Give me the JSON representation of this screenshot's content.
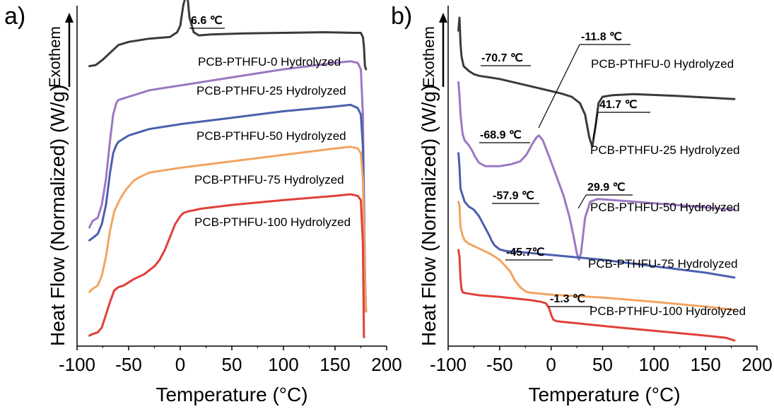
{
  "colors": {
    "PCB-PTHFU-0 Hydrolyzed": "#3a3a3a",
    "PCB-PTHFU-25 Hydrolyzed": "#9b78c2",
    "PCB-PTHFU-50 Hydrolyzed": "#4a5fad",
    "PCB-PTHFU-75 Hydrolyzed": "#f2a562",
    "PCB-PTHFU-100 Hydrolyzed": "#e0403a"
  },
  "chart_data": [
    {
      "type": "line",
      "panel": "a)",
      "xlabel": "Temperature (°C)",
      "ylabel": "Heat Flow (Normalized) (W/g)",
      "exotherm_label": "Exothem",
      "xlim": [
        -100,
        200
      ],
      "xticks": [
        -100,
        -50,
        0,
        50,
        100,
        150,
        200
      ],
      "ylim": [
        0,
        100
      ],
      "y_ticks_shown": false,
      "grid": false,
      "legend": "none",
      "series": [
        {
          "name": "PCB-PTHFU-0 Hydrolyzed",
          "x": [
            -88,
            -82,
            -75,
            -65,
            -60,
            -50,
            -30,
            -10,
            -3,
            0,
            3,
            6.6,
            9,
            13,
            18,
            30,
            60,
            100,
            140,
            170,
            175,
            177,
            178,
            179,
            180
          ],
          "y": [
            85,
            85.3,
            87,
            90,
            91.5,
            92.5,
            93.5,
            94,
            95.5,
            97.5,
            104,
            108,
            100,
            95.5,
            94.5,
            94.8,
            95.1,
            95.3,
            95.5,
            95.3,
            95.3,
            94,
            91,
            85,
            84
          ]
        },
        {
          "name": "PCB-PTHFU-25 Hydrolyzed",
          "x": [
            -88,
            -85,
            -80,
            -76,
            -72,
            -68,
            -65,
            -62,
            -60,
            -55,
            -50,
            -40,
            -30,
            -20,
            0,
            50,
            100,
            150,
            165,
            172,
            175,
            177,
            178,
            179,
            180
          ],
          "y": [
            35,
            37,
            38,
            42,
            50,
            62,
            70,
            73.5,
            74.5,
            75,
            75.5,
            76.5,
            77.5,
            78,
            79,
            81.5,
            84,
            86,
            86.5,
            86,
            84,
            70,
            45,
            20,
            9
          ]
        },
        {
          "name": "PCB-PTHFU-50 Hydrolyzed",
          "x": [
            -88,
            -84,
            -80,
            -76,
            -72,
            -68,
            -65,
            -62,
            -60,
            -55,
            -50,
            -40,
            -30,
            -20,
            0,
            50,
            100,
            150,
            165,
            172,
            175,
            177,
            178,
            179,
            180
          ],
          "y": [
            31,
            32,
            33,
            36,
            42,
            52,
            58,
            60.5,
            61.5,
            62.5,
            63.5,
            64.5,
            65.5,
            66,
            67,
            69,
            71,
            72.5,
            73,
            72,
            70,
            60,
            40,
            20,
            9
          ]
        },
        {
          "name": "PCB-PTHFU-75 Hydrolyzed",
          "x": [
            -88,
            -85,
            -80,
            -76,
            -72,
            -68,
            -64,
            -61,
            -58,
            -52,
            -45,
            -40,
            -30,
            -10,
            0,
            50,
            100,
            150,
            165,
            172,
            175,
            177,
            178,
            179,
            180
          ],
          "y": [
            15,
            16,
            17,
            20,
            26,
            34,
            40,
            42,
            44,
            47,
            49.5,
            50.5,
            52,
            53,
            53.5,
            55.5,
            57.5,
            59.5,
            60,
            59.5,
            58,
            50,
            35,
            18,
            9
          ]
        },
        {
          "name": "PCB-PTHFU-100 Hydrolyzed",
          "x": [
            -88,
            -85,
            -80,
            -76,
            -72,
            -68,
            -64,
            -60,
            -55,
            -45,
            -35,
            -25,
            -20,
            -15,
            -10,
            -5,
            0,
            3,
            8,
            20,
            50,
            100,
            150,
            165,
            172,
            175,
            177,
            178
          ],
          "y": [
            1.5,
            2,
            2.5,
            4,
            8,
            12,
            15.5,
            16.5,
            17,
            19,
            20.5,
            23,
            25,
            28,
            32,
            36,
            38.5,
            39.5,
            40,
            40.8,
            42,
            43.5,
            44.8,
            45.3,
            44.8,
            43.5,
            30,
            1
          ]
        }
      ],
      "label_texts": [
        "PCB-PTHFU-0 Hydrolyzed",
        "PCB-PTHFU-25 Hydrolyzed",
        "PCB-PTHFU-50 Hydrolyzed",
        "PCB-PTHFU-75 Hydrolyzed",
        "PCB-PTHFU-100 Hydrolyzed"
      ],
      "annotations": [
        {
          "text": "6.6 ℃",
          "x": 6.6
        }
      ]
    },
    {
      "type": "line",
      "panel": "b)",
      "xlabel": "Temperature (°C)",
      "ylabel": "Heat Flow (Normalized) (W/g)",
      "exotherm_label": "Exothem",
      "xlim": [
        -100,
        200
      ],
      "xticks": [
        -100,
        -50,
        0,
        50,
        100,
        150,
        200
      ],
      "ylim": [
        0,
        100
      ],
      "y_ticks_shown": false,
      "grid": false,
      "legend": "none",
      "series": [
        {
          "name": "PCB-PTHFU-0 Hydrolyzed",
          "x": [
            -90,
            -89,
            -88,
            -87,
            -85,
            -80,
            -75,
            -70,
            -60,
            -50,
            -30,
            -10,
            10,
            20,
            28,
            33,
            37,
            40,
            43,
            46,
            50,
            60,
            80,
            120,
            178
          ],
          "y": [
            96,
            100,
            92,
            88,
            85,
            83.5,
            82.5,
            82,
            81.5,
            81,
            79.5,
            78,
            76.5,
            75.5,
            73.5,
            70,
            63,
            60,
            66,
            73.5,
            75.5,
            76,
            76.3,
            75.8,
            74.8
          ]
        },
        {
          "name": "PCB-PTHFU-25 Hydrolyzed",
          "x": [
            -90,
            -89,
            -88,
            -86,
            -84,
            -80,
            -77,
            -74,
            -70,
            -64,
            -60,
            -50,
            -40,
            -30,
            -24,
            -18,
            -14,
            -11.8,
            -8,
            -2,
            5,
            12,
            18,
            22,
            25,
            27,
            29,
            33,
            38,
            45,
            60,
            100,
            140,
            178
          ],
          "y": [
            80,
            76,
            70,
            64,
            62,
            60.5,
            59,
            57,
            55,
            54,
            54,
            54,
            54.5,
            55.5,
            57.5,
            61,
            63,
            63.5,
            62,
            57,
            51,
            45,
            38,
            32,
            27,
            25,
            27,
            38,
            43,
            43.8,
            43.5,
            42.5,
            41.5,
            40.5
          ]
        },
        {
          "name": "PCB-PTHFU-50 Hydrolyzed",
          "x": [
            -90,
            -89,
            -88,
            -86,
            -84,
            -80,
            -75,
            -70,
            -65,
            -60,
            -57.9,
            -55,
            -50,
            -45,
            -40,
            -30,
            0,
            50,
            100,
            150,
            178
          ],
          "y": [
            58,
            54,
            47,
            45,
            43,
            41.5,
            40.5,
            38.5,
            35.5,
            32.5,
            31,
            29.5,
            28.2,
            27.8,
            27.6,
            27.4,
            26.5,
            25,
            23,
            21,
            19.5
          ]
        },
        {
          "name": "PCB-PTHFU-75 Hydrolyzed",
          "x": [
            -90,
            -89,
            -88,
            -86,
            -84,
            -80,
            -70,
            -60,
            -50,
            -40,
            -35,
            -30,
            -25,
            -20,
            -10,
            0,
            50,
            100,
            150,
            178
          ],
          "y": [
            43,
            42,
            35,
            32.5,
            31,
            30,
            28.5,
            27,
            25,
            21.5,
            18.5,
            16.5,
            15.2,
            14.8,
            14.5,
            14.2,
            13.3,
            12,
            10.5,
            9.5
          ]
        },
        {
          "name": "PCB-PTHFU-100 Hydrolyzed",
          "x": [
            -90,
            -89,
            -88,
            -87,
            -86,
            -85,
            -80,
            -70,
            -50,
            -20,
            -10,
            -5,
            -2,
            0,
            2,
            5,
            10,
            20,
            50,
            100,
            150,
            170,
            175,
            178
          ],
          "y": [
            28,
            26,
            19,
            16,
            15,
            14.8,
            14.5,
            14,
            13.5,
            12.5,
            12,
            11.5,
            10,
            8,
            6.5,
            6,
            5.8,
            5.5,
            4.5,
            3,
            1.5,
            0.8,
            0.3,
            0
          ]
        }
      ],
      "label_texts": [
        "PCB-PTHFU-0 Hydrolyzed",
        "PCB-PTHFU-25 Hydrolyzed",
        "PCB-PTHFU-50 Hydrolyzed",
        "PCB-PTHFU-75 Hydrolyzed",
        "PCB-PTHFU-100 Hydrolyzed"
      ],
      "annotations": [
        {
          "text": "-70.7 ℃"
        },
        {
          "text": "-11.8 ℃"
        },
        {
          "text": "41.7 ℃"
        },
        {
          "text": "-68.9 ℃"
        },
        {
          "text": "29.9 ℃"
        },
        {
          "text": "-57.9 ℃"
        },
        {
          "text": "-45.7℃"
        },
        {
          "text": "-1.3 ℃"
        }
      ]
    }
  ]
}
